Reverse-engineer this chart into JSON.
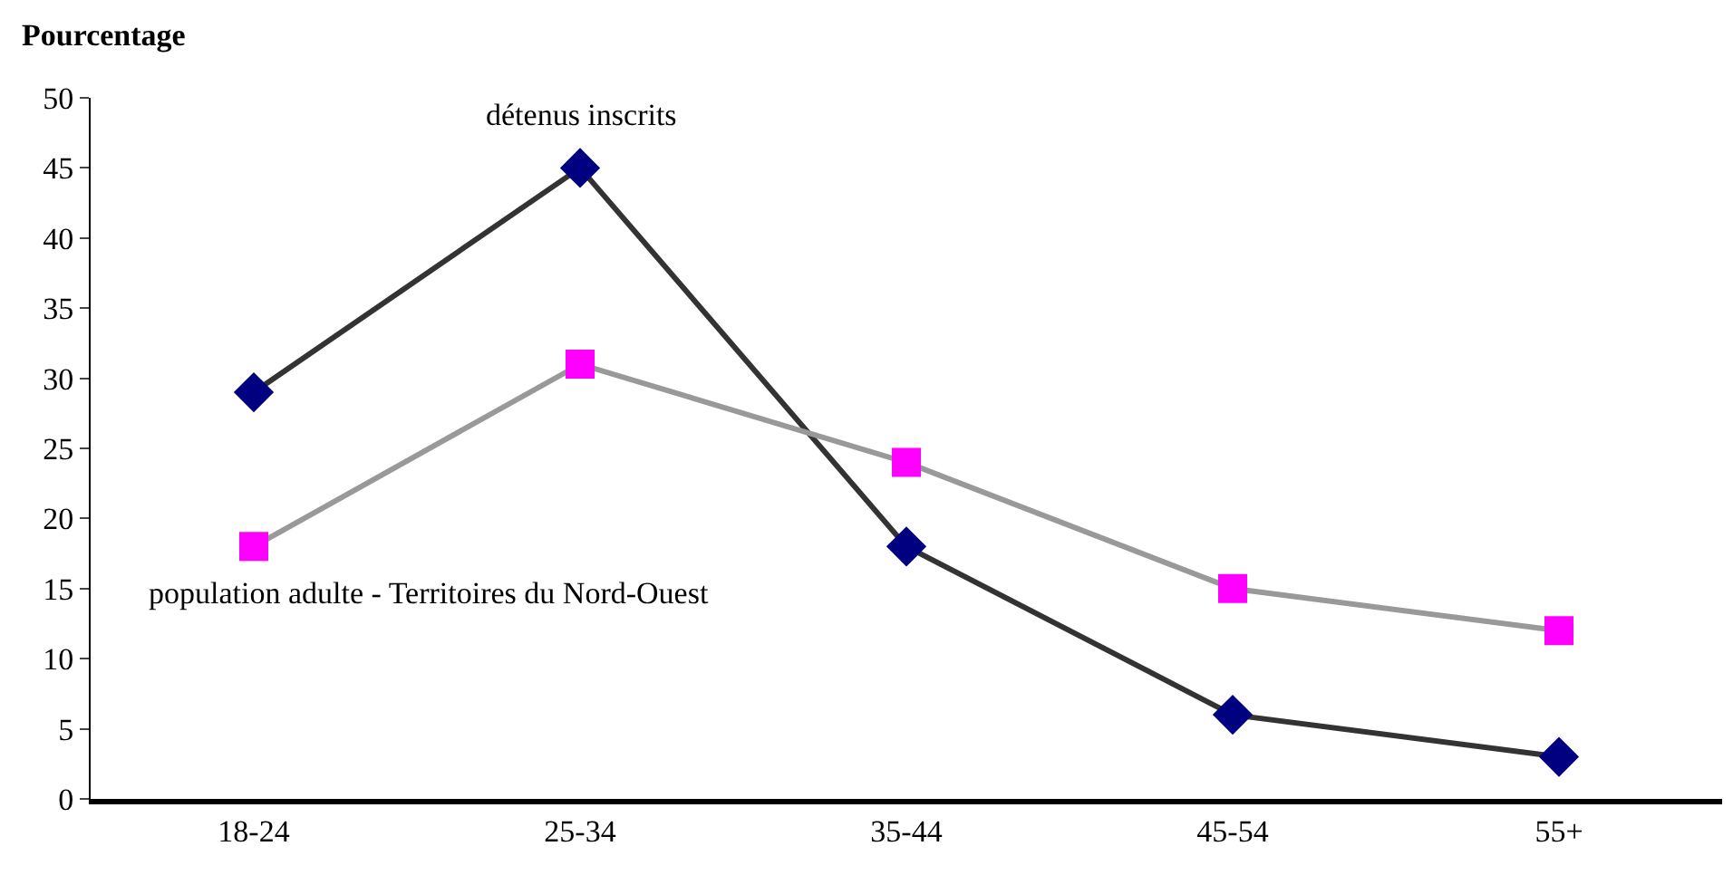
{
  "chart_data": {
    "type": "line",
    "ylabel": "Pourcentage",
    "categories": [
      "18-24",
      "25-34",
      "35-44",
      "45-54",
      "55+"
    ],
    "series": [
      {
        "name": "détenus inscrits",
        "color": "#000080",
        "marker": "diamond",
        "values": [
          29,
          45,
          18,
          6,
          3
        ]
      },
      {
        "name": "population adulte - Territoires du Nord-Ouest",
        "color": "#ff00ff",
        "marker": "square",
        "values": [
          18,
          31,
          24,
          15,
          12
        ]
      }
    ],
    "ylim": [
      0,
      50
    ],
    "yticks": [
      0,
      5,
      10,
      15,
      20,
      25,
      30,
      35,
      40,
      45,
      50
    ],
    "legend": false
  }
}
